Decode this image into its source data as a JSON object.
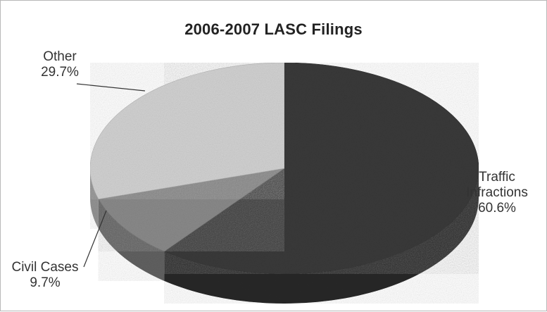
{
  "chart_data": {
    "type": "pie",
    "title": "2006-2007 LASC Filings",
    "slices": [
      {
        "name": "Traffic Infractions",
        "label_lines": [
          "Traffic",
          "Infractions"
        ],
        "value": 60.6,
        "value_label": "60.6%",
        "color": "#3a3a3a"
      },
      {
        "name": "Civil Cases",
        "label_lines": [
          "Civil Cases"
        ],
        "value": 9.7,
        "value_label": "9.7%",
        "color": "#8a8a8a"
      },
      {
        "name": "Other",
        "label_lines": [
          "Other"
        ],
        "value": 29.7,
        "value_label": "29.7%",
        "color": "#d2d2d2"
      }
    ],
    "style": "3d",
    "legend": "none"
  }
}
